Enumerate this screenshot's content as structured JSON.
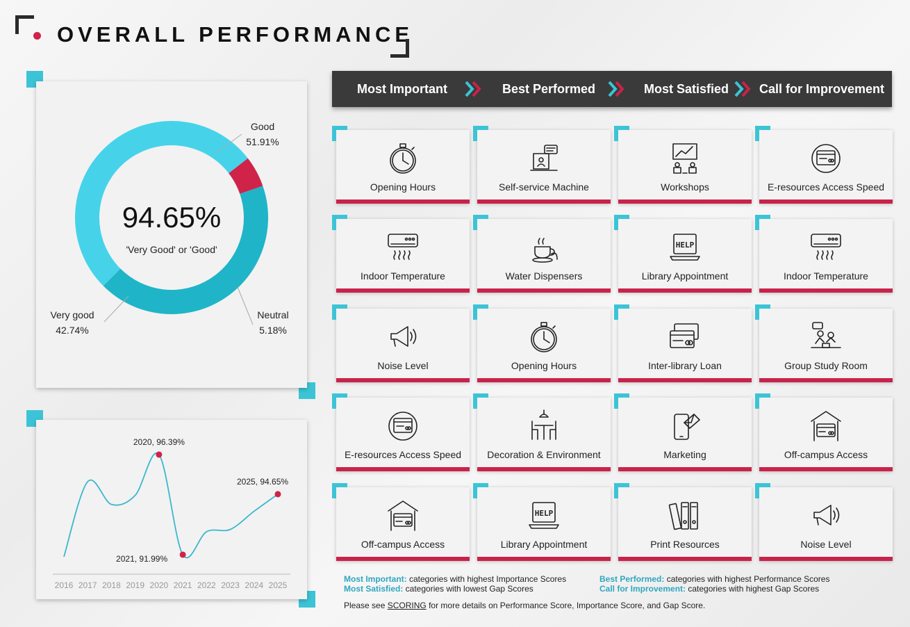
{
  "page": {
    "title": "OVERALL PERFORMANCE"
  },
  "colors": {
    "teal": "#3cc4d6",
    "teal_dark": "#1fb4c8",
    "red": "#c8234b",
    "dark": "#3a3a3a"
  },
  "donut": {
    "center_value": "94.65%",
    "center_text": "'Very Good'   or   'Good'",
    "segments": [
      {
        "name": "Good",
        "pct_text": "51.91%",
        "value": 51.91,
        "color": "#46d3ea"
      },
      {
        "name": "Neutral",
        "pct_text": "5.18%",
        "value": 5.18,
        "color": "#d0234a"
      },
      {
        "name": "Very good",
        "pct_text": "42.74%",
        "value": 42.74,
        "color": "#1fb4c8"
      }
    ]
  },
  "chart_data": {
    "type": "line",
    "x": [
      "2016",
      "2017",
      "2018",
      "2019",
      "2020",
      "2021",
      "2022",
      "2023",
      "2024",
      "2025"
    ],
    "y": [
      91.9,
      95.2,
      94.2,
      94.6,
      96.39,
      91.99,
      93.0,
      93.1,
      93.9,
      94.65
    ],
    "ylim": [
      91.5,
      97.0
    ],
    "series_color": "#3cb7cc",
    "annotations": [
      {
        "x": "2020",
        "y": 96.39,
        "text": "2020, 96.39%"
      },
      {
        "x": "2021",
        "y": 91.99,
        "text": "2021, 91.99%"
      },
      {
        "x": "2025",
        "y": 94.65,
        "text": "2025, 94.65%"
      }
    ]
  },
  "nav": [
    "Most Important",
    "Best Performed",
    "Most Satisfied",
    "Call for Improvement"
  ],
  "grid": [
    [
      "Opening Hours",
      "Self-service Machine",
      "Workshops",
      "E-resources Access Speed"
    ],
    [
      "Indoor Temperature",
      "Water Dispensers",
      "Library Appointment",
      "Indoor Temperature"
    ],
    [
      "Noise Level",
      "Opening Hours",
      "Inter-library Loan",
      "Group Study Room"
    ],
    [
      "E-resources Access Speed",
      "Decoration & Environment",
      "Marketing",
      "Off-campus Access"
    ],
    [
      "Off-campus Access",
      "Library Appointment",
      "Print Resources",
      "Noise Level"
    ]
  ],
  "grid_icons": [
    [
      "stopwatch-icon",
      "kiosk-icon",
      "presentation-icon",
      "web-clock-icon"
    ],
    [
      "air-conditioner-icon",
      "coffee-icon",
      "help-laptop-icon",
      "air-conditioner-icon"
    ],
    [
      "megaphone-icon",
      "stopwatch-icon",
      "cards-icon",
      "group-study-icon"
    ],
    [
      "web-clock-icon",
      "cafe-table-icon",
      "mobile-mail-icon",
      "house-card-icon"
    ],
    [
      "house-card-icon",
      "help-laptop-icon",
      "binders-icon",
      "megaphone-icon"
    ]
  ],
  "notes": {
    "mi_key": "Most Important:",
    "mi_text": " categories with highest Importance Scores",
    "ms_key": "Most Satisfied:",
    "ms_text": " categories with lowest Gap Scores",
    "bp_key": "Best Performed:",
    "bp_text": " categories with highest Performance Scores",
    "ci_key": "Call for Improvement:",
    "ci_text": " categories with highest Gap Scores",
    "scoring_pre": "Please see ",
    "scoring_link": "SCORING",
    "scoring_post": " for more details on Performance Score, Importance Score, and Gap Score."
  }
}
